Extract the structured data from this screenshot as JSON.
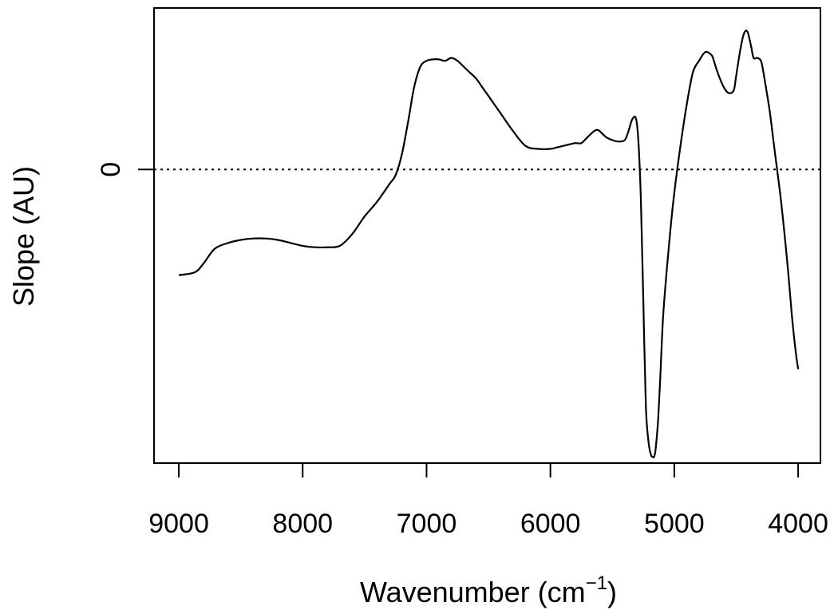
{
  "chart_data": {
    "type": "line",
    "xlabel": "Wavenumber (cm",
    "xlabel_superscript": "−1",
    "xlabel_suffix": ")",
    "ylabel": "Slope (AU)",
    "x_reversed": true,
    "xlim": [
      9200,
      3820
    ],
    "ylim": [
      -1.0,
      0.55
    ],
    "x_ticks": [
      9000,
      8000,
      7000,
      6000,
      5000,
      4000
    ],
    "x_tick_labels": [
      "9000",
      "8000",
      "7000",
      "6000",
      "5000",
      "4000"
    ],
    "y_ticks": [
      0
    ],
    "y_tick_labels": [
      "0"
    ],
    "reference_line": {
      "y": 0,
      "style": "dotted"
    },
    "grid": false,
    "series": [
      {
        "x": [
          9000,
          8870,
          8800,
          8710,
          8600,
          8500,
          8400,
          8300,
          8200,
          8100,
          8000,
          7900,
          7800,
          7700,
          7600,
          7500,
          7400,
          7300,
          7250,
          7200,
          7150,
          7100,
          7050,
          7000,
          6950,
          6900,
          6850,
          6800,
          6750,
          6700,
          6650,
          6600,
          6550,
          6500,
          6400,
          6300,
          6200,
          6100,
          6000,
          5950,
          5900,
          5850,
          5800,
          5750,
          5700,
          5650,
          5620,
          5600,
          5550,
          5500,
          5450,
          5400,
          5370,
          5340,
          5310,
          5290,
          5270,
          5250,
          5230,
          5210,
          5190,
          5170,
          5160,
          5150,
          5130,
          5110,
          5090,
          5060,
          5030,
          5000,
          4950,
          4900,
          4850,
          4800,
          4750,
          4700,
          4680,
          4650,
          4600,
          4560,
          4520,
          4500,
          4470,
          4440,
          4410,
          4380,
          4360,
          4330,
          4300,
          4280,
          4260,
          4230,
          4200,
          4170,
          4140,
          4110,
          4080,
          4050,
          4020,
          4000
        ],
        "y": [
          -0.36,
          -0.35,
          -0.32,
          -0.27,
          -0.25,
          -0.24,
          -0.235,
          -0.235,
          -0.24,
          -0.25,
          -0.26,
          -0.265,
          -0.265,
          -0.26,
          -0.22,
          -0.16,
          -0.11,
          -0.05,
          -0.02,
          0.05,
          0.16,
          0.28,
          0.35,
          0.37,
          0.375,
          0.375,
          0.37,
          0.38,
          0.37,
          0.35,
          0.33,
          0.31,
          0.28,
          0.25,
          0.19,
          0.13,
          0.08,
          0.07,
          0.07,
          0.075,
          0.08,
          0.085,
          0.09,
          0.09,
          0.11,
          0.13,
          0.135,
          0.13,
          0.11,
          0.1,
          0.095,
          0.1,
          0.13,
          0.17,
          0.175,
          0.1,
          -0.1,
          -0.45,
          -0.8,
          -0.92,
          -0.97,
          -0.98,
          -0.975,
          -0.95,
          -0.85,
          -0.68,
          -0.5,
          -0.34,
          -0.2,
          -0.08,
          0.08,
          0.22,
          0.33,
          0.37,
          0.4,
          0.39,
          0.37,
          0.33,
          0.28,
          0.26,
          0.27,
          0.32,
          0.4,
          0.46,
          0.47,
          0.42,
          0.38,
          0.38,
          0.37,
          0.33,
          0.28,
          0.2,
          0.1,
          0.0,
          -0.1,
          -0.22,
          -0.35,
          -0.5,
          -0.62,
          -0.68
        ]
      }
    ]
  }
}
